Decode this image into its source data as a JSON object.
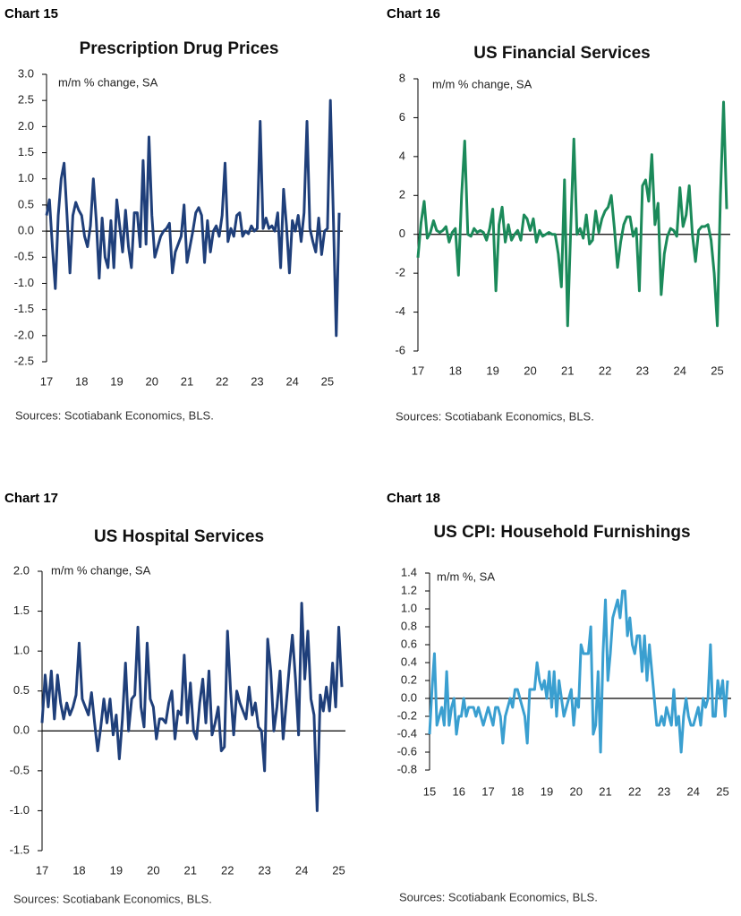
{
  "chart_data": [
    {
      "type": "line",
      "label": "Chart 15",
      "title": "Prescription Drug Prices",
      "annotation": "m/m % change, SA",
      "source": "Sources: Scotiabank Economics, BLS.",
      "color": "#1f3f7a",
      "categories": [
        "17",
        null,
        null,
        null,
        null,
        null,
        null,
        null,
        null,
        null,
        null,
        null,
        "18",
        null,
        null,
        null,
        null,
        null,
        null,
        null,
        null,
        null,
        null,
        null,
        "19",
        null,
        null,
        null,
        null,
        null,
        null,
        null,
        null,
        null,
        null,
        null,
        "20",
        null,
        null,
        null,
        null,
        null,
        null,
        null,
        null,
        null,
        null,
        null,
        "21",
        null,
        null,
        null,
        null,
        null,
        null,
        null,
        null,
        null,
        null,
        null,
        "22",
        null,
        null,
        null,
        null,
        null,
        null,
        null,
        null,
        null,
        null,
        null,
        "23",
        null,
        null,
        null,
        null,
        null,
        null,
        null,
        null,
        null,
        null,
        null,
        "24",
        null,
        null,
        null,
        null,
        null,
        null,
        null,
        null,
        null,
        null,
        null,
        "25",
        null,
        null,
        null,
        null
      ],
      "values": [
        0.3,
        0.6,
        -0.3,
        -1.1,
        0.3,
        1.0,
        1.3,
        0.3,
        -0.8,
        0.3,
        0.55,
        0.4,
        0.3,
        -0.1,
        -0.3,
        0.1,
        1.0,
        0.2,
        -0.9,
        0.25,
        -0.5,
        -0.7,
        0.2,
        -0.7,
        0.6,
        0.1,
        -0.4,
        0.4,
        -0.3,
        -0.7,
        0.35,
        0.35,
        -0.3,
        1.35,
        -0.25,
        1.8,
        0.3,
        -0.5,
        -0.3,
        -0.1,
        0.0,
        0.05,
        0.15,
        -0.8,
        -0.4,
        -0.25,
        -0.1,
        0.5,
        -0.6,
        -0.3,
        0.0,
        0.35,
        0.45,
        0.3,
        -0.6,
        0.2,
        -0.4,
        0.0,
        0.1,
        -0.1,
        0.3,
        1.3,
        -0.2,
        0.05,
        -0.1,
        0.3,
        0.35,
        -0.1,
        0.0,
        -0.05,
        0.1,
        0.0,
        0.05,
        2.1,
        0.05,
        0.25,
        0.05,
        0.1,
        0.0,
        0.35,
        -0.7,
        0.8,
        0.1,
        -0.8,
        0.2,
        0.0,
        0.3,
        -0.2,
        0.35,
        2.1,
        0.05,
        -0.2,
        -0.4,
        0.25,
        -0.45,
        0.0,
        0.05,
        2.5,
        0.3,
        -2.0,
        0.35
      ],
      "ylim": [
        -2.5,
        3
      ],
      "yticks": [
        -2.5,
        {
          "value": -2,
          "label": "-2.0"
        },
        -1.5,
        {
          "value": -1,
          "label": "-1.0"
        },
        -0.5,
        {
          "value": 0,
          "label": "0.0"
        },
        0.5,
        {
          "value": 1,
          "label": "1.0"
        },
        1.5,
        {
          "value": 2,
          "label": "2.0"
        },
        2.5,
        {
          "value": 3,
          "label": "3.0"
        }
      ]
    },
    {
      "type": "line",
      "label": "Chart 16",
      "title": "US Financial Services",
      "annotation": "m/m % change, SA",
      "source": "Sources: Scotiabank Economics, BLS.",
      "color": "#1b8a5a",
      "categories": [
        "17",
        null,
        null,
        null,
        null,
        null,
        null,
        null,
        null,
        null,
        null,
        null,
        "18",
        null,
        null,
        null,
        null,
        null,
        null,
        null,
        null,
        null,
        null,
        null,
        "19",
        null,
        null,
        null,
        null,
        null,
        null,
        null,
        null,
        null,
        null,
        null,
        "20",
        null,
        null,
        null,
        null,
        null,
        null,
        null,
        null,
        null,
        null,
        null,
        "21",
        null,
        null,
        null,
        null,
        null,
        null,
        null,
        null,
        null,
        null,
        null,
        "22",
        null,
        null,
        null,
        null,
        null,
        null,
        null,
        null,
        null,
        null,
        null,
        "23",
        null,
        null,
        null,
        null,
        null,
        null,
        null,
        null,
        null,
        null,
        null,
        "24",
        null,
        null,
        null,
        null,
        null,
        null,
        null,
        null,
        null,
        null,
        null,
        "25",
        null,
        null,
        null
      ],
      "values": [
        -1.2,
        0.6,
        1.7,
        -0.2,
        0.1,
        0.7,
        0.2,
        0.1,
        0.2,
        0.4,
        -0.4,
        0.1,
        0.3,
        -2.1,
        2.0,
        4.8,
        0.0,
        -0.1,
        0.3,
        0.1,
        0.2,
        0.1,
        -0.3,
        0.3,
        1.3,
        -2.9,
        0.5,
        1.4,
        -0.4,
        0.5,
        -0.3,
        0.0,
        0.2,
        -0.3,
        1.0,
        0.8,
        0.2,
        0.8,
        -0.4,
        0.2,
        -0.1,
        0.0,
        0.1,
        0.0,
        0.0,
        -1.0,
        -2.7,
        2.8,
        -4.7,
        0.3,
        4.9,
        0.0,
        0.3,
        -0.2,
        1.0,
        -0.5,
        -0.3,
        1.2,
        0.1,
        0.8,
        1.2,
        1.4,
        2.0,
        0.3,
        -1.7,
        -0.4,
        0.5,
        0.9,
        0.9,
        -0.1,
        0.3,
        -2.9,
        2.5,
        2.8,
        1.7,
        4.1,
        0.5,
        1.6,
        -3.1,
        -1.0,
        -0.1,
        0.3,
        0.2,
        -0.1,
        2.4,
        0.4,
        1.0,
        2.5,
        0.0,
        -1.4,
        0.2,
        0.4,
        0.4,
        0.5,
        -0.3,
        -2.0,
        -4.7,
        2.0,
        6.8,
        1.3
      ],
      "ylim": [
        -6,
        8
      ],
      "yticks": [
        -6,
        -4,
        -2,
        0,
        2,
        4,
        6,
        8
      ]
    },
    {
      "type": "line",
      "label": "Chart 17",
      "title": "US Hospital Services",
      "annotation": "m/m % change, SA",
      "source": "Sources: Scotiabank Economics, BLS.",
      "color": "#1f3f7a",
      "categories": [
        "17",
        null,
        null,
        null,
        null,
        null,
        null,
        null,
        null,
        null,
        null,
        null,
        "18",
        null,
        null,
        null,
        null,
        null,
        null,
        null,
        null,
        null,
        null,
        null,
        "19",
        null,
        null,
        null,
        null,
        null,
        null,
        null,
        null,
        null,
        null,
        null,
        "20",
        null,
        null,
        null,
        null,
        null,
        null,
        null,
        null,
        null,
        null,
        null,
        "21",
        null,
        null,
        null,
        null,
        null,
        null,
        null,
        null,
        null,
        null,
        null,
        "22",
        null,
        null,
        null,
        null,
        null,
        null,
        null,
        null,
        null,
        null,
        null,
        "23",
        null,
        null,
        null,
        null,
        null,
        null,
        null,
        null,
        null,
        null,
        null,
        "24",
        null,
        null,
        null,
        null,
        null,
        null,
        null,
        null,
        null,
        null,
        null,
        "25",
        null
      ],
      "values": [
        0.1,
        0.7,
        0.3,
        0.75,
        0.15,
        0.7,
        0.35,
        0.15,
        0.35,
        0.2,
        0.3,
        0.45,
        1.1,
        0.4,
        0.3,
        0.2,
        0.48,
        0.1,
        -0.25,
        0.05,
        0.4,
        0.1,
        0.4,
        -0.05,
        0.2,
        -0.35,
        0.15,
        0.85,
        0.0,
        0.4,
        0.45,
        1.3,
        0.3,
        0.05,
        1.1,
        0.4,
        0.3,
        -0.1,
        0.15,
        0.15,
        0.1,
        0.35,
        0.5,
        -0.1,
        0.25,
        0.2,
        0.95,
        0.1,
        0.6,
        0.0,
        -0.1,
        0.35,
        0.65,
        0.1,
        0.75,
        -0.05,
        0.1,
        0.3,
        -0.25,
        -0.2,
        1.25,
        0.5,
        -0.05,
        0.5,
        0.35,
        0.25,
        0.15,
        0.55,
        0.2,
        0.35,
        0.05,
        0.0,
        -0.5,
        1.15,
        0.75,
        0.0,
        0.3,
        0.75,
        -0.1,
        0.35,
        0.8,
        1.2,
        0.65,
        -0.05,
        1.6,
        0.65,
        1.25,
        0.4,
        0.2,
        -1.0,
        0.45,
        0.25,
        0.55,
        0.25,
        0.85,
        0.3,
        1.3,
        0.55
      ],
      "ylim": [
        -1.5,
        2
      ],
      "yticks": [
        -1.5,
        {
          "value": -1,
          "label": "-1.0"
        },
        -0.5,
        {
          "value": 0,
          "label": "0.0"
        },
        0.5,
        {
          "value": 1,
          "label": "1.0"
        },
        1.5,
        {
          "value": 2,
          "label": "2.0"
        }
      ]
    },
    {
      "type": "line",
      "label": "Chart 18",
      "title": "US CPI: Household Furnishings",
      "annotation": "m/m %, SA",
      "source": "Sources: Scotiabank Economics, BLS.",
      "color": "#3a9fd0",
      "categories": [
        "15",
        null,
        null,
        null,
        null,
        null,
        null,
        null,
        null,
        null,
        null,
        null,
        "16",
        null,
        null,
        null,
        null,
        null,
        null,
        null,
        null,
        null,
        null,
        null,
        "17",
        null,
        null,
        null,
        null,
        null,
        null,
        null,
        null,
        null,
        null,
        null,
        "18",
        null,
        null,
        null,
        null,
        null,
        null,
        null,
        null,
        null,
        null,
        null,
        "19",
        null,
        null,
        null,
        null,
        null,
        null,
        null,
        null,
        null,
        null,
        null,
        "20",
        null,
        null,
        null,
        null,
        null,
        null,
        null,
        null,
        null,
        null,
        null,
        "21",
        null,
        null,
        null,
        null,
        null,
        null,
        null,
        null,
        null,
        null,
        null,
        "22",
        null,
        null,
        null,
        null,
        null,
        null,
        null,
        null,
        null,
        null,
        null,
        "23",
        null,
        null,
        null,
        null,
        null,
        null,
        null,
        null,
        null,
        null,
        null,
        "24",
        null,
        null,
        null,
        null,
        null,
        null,
        null,
        null,
        null,
        null,
        null,
        "25",
        null,
        null
      ],
      "values": [
        -0.4,
        0.1,
        0.5,
        -0.3,
        -0.2,
        -0.1,
        -0.3,
        0.3,
        -0.3,
        -0.1,
        0.0,
        -0.4,
        -0.2,
        -0.2,
        0.0,
        -0.2,
        -0.1,
        -0.1,
        -0.1,
        -0.2,
        -0.1,
        -0.2,
        -0.3,
        -0.2,
        -0.1,
        -0.2,
        -0.3,
        -0.1,
        -0.1,
        -0.2,
        -0.5,
        -0.2,
        -0.1,
        0.0,
        -0.1,
        0.1,
        0.1,
        0.0,
        -0.1,
        -0.2,
        -0.5,
        0.1,
        0.1,
        0.1,
        0.4,
        0.2,
        0.1,
        0.2,
        0.0,
        0.3,
        -0.1,
        0.3,
        -0.2,
        0.2,
        0.0,
        -0.2,
        -0.1,
        0.0,
        0.1,
        -0.3,
        0.0,
        -0.1,
        0.6,
        0.5,
        0.5,
        0.5,
        0.8,
        -0.4,
        -0.3,
        0.3,
        -0.6,
        0.5,
        1.1,
        0.2,
        0.5,
        0.9,
        1.0,
        1.1,
        0.9,
        1.2,
        1.2,
        0.7,
        0.9,
        0.6,
        0.5,
        0.7,
        0.7,
        0.3,
        0.7,
        0.2,
        0.6,
        0.3,
        0.0,
        -0.3,
        -0.3,
        -0.2,
        -0.3,
        -0.1,
        -0.2,
        -0.3,
        0.1,
        -0.3,
        -0.2,
        -0.6,
        -0.2,
        0.0,
        -0.2,
        -0.3,
        -0.3,
        -0.2,
        -0.1,
        -0.3,
        0.0,
        -0.1,
        0.0,
        0.6,
        -0.2,
        -0.2,
        0.2,
        0.0,
        0.2,
        -0.2,
        0.2
      ],
      "ylim": [
        -0.8,
        1.4
      ],
      "yticks": [
        -0.8,
        -0.6,
        -0.4,
        -0.2,
        {
          "value": 0,
          "label": "0.0"
        },
        0.2,
        0.4,
        0.6,
        0.8,
        {
          "value": 1,
          "label": "1.0"
        },
        1.2,
        1.4
      ]
    }
  ]
}
